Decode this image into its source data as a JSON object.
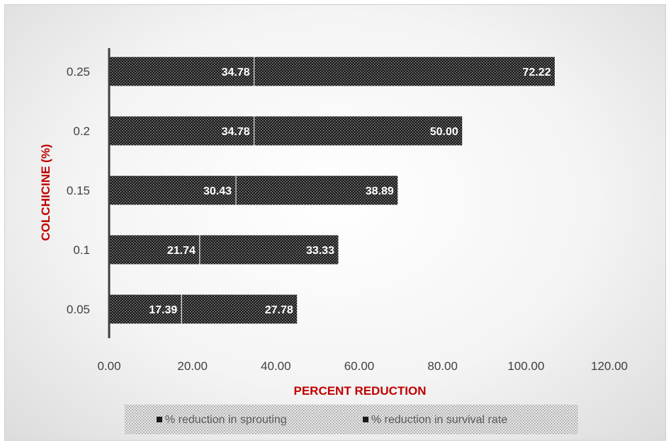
{
  "chart_data": {
    "type": "bar",
    "orientation": "horizontal",
    "stacked": true,
    "categories": [
      "0.05",
      "0.1",
      "0.15",
      "0.2",
      "0.25"
    ],
    "series": [
      {
        "name": "% reduction in sprouting",
        "values": [
          17.39,
          21.74,
          30.43,
          34.78,
          34.78
        ],
        "labels": [
          "17.39",
          "21.74",
          "30.43",
          "34.78",
          "34.78"
        ]
      },
      {
        "name": "%  reduction in survival rate",
        "values": [
          27.78,
          33.33,
          38.89,
          50.0,
          72.22
        ],
        "labels": [
          "27.78",
          "33.33",
          "38.89",
          "50.00",
          "72.22"
        ]
      }
    ],
    "xlabel": "PERCENT REDUCTION",
    "ylabel": "COLCHICINE (%)",
    "xlim": [
      0,
      120
    ],
    "xticks": [
      "0.00",
      "20.00",
      "40.00",
      "60.00",
      "80.00",
      "100.00",
      "120.00"
    ],
    "grid": false,
    "legend_position": "bottom",
    "colors": {
      "bar_fill": "#1a1a1a",
      "bar_dots": "#9a9a9a",
      "axis_title": "#c00000",
      "tick_text": "#404040",
      "legend_text": "#595959"
    }
  }
}
